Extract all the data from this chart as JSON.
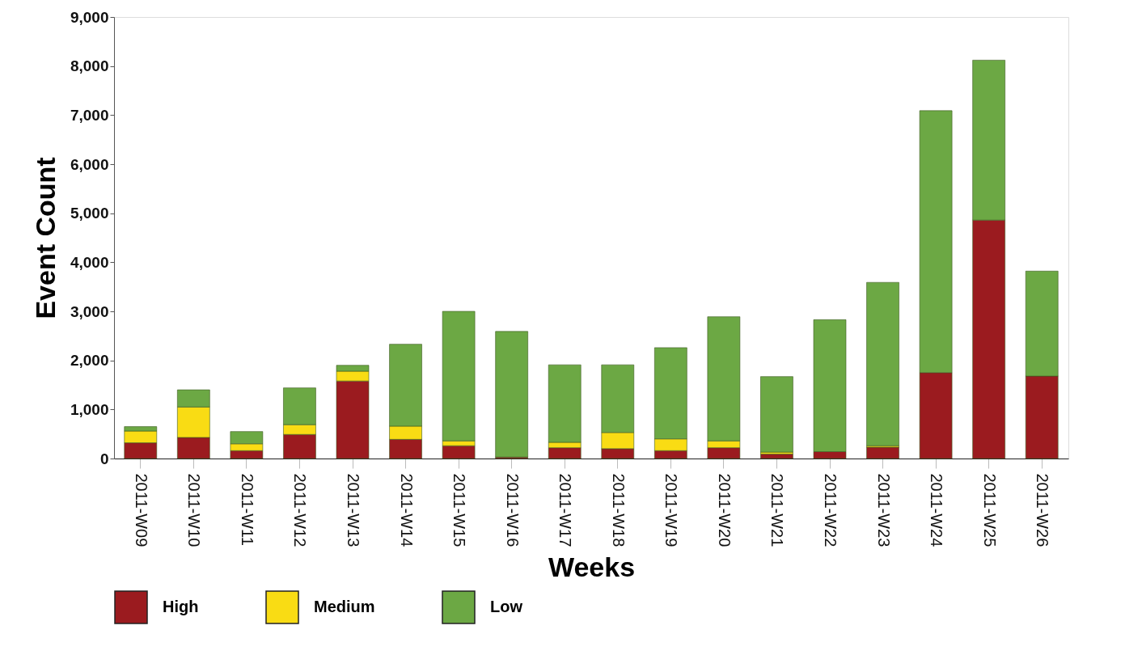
{
  "chart_data": {
    "type": "bar",
    "xlabel": "Weeks",
    "ylabel": "Event Count",
    "stacked": true,
    "categories": [
      "2011-W09",
      "2011-W10",
      "2011-W11",
      "2011-W12",
      "2011-W13",
      "2011-W14",
      "2011-W15",
      "2011-W16",
      "2011-W17",
      "2011-W18",
      "2011-W19",
      "2011-W20",
      "2011-W21",
      "2011-W22",
      "2011-W23",
      "2011-W24",
      "2011-W25",
      "2011-W26"
    ],
    "series": [
      {
        "name": "High",
        "color": "#9b1b1f",
        "values": [
          320,
          430,
          160,
          490,
          1580,
          390,
          260,
          30,
          220,
          200,
          160,
          220,
          90,
          140,
          230,
          1750,
          4860,
          1680
        ]
      },
      {
        "name": "Medium",
        "color": "#f9dc14",
        "values": [
          240,
          620,
          140,
          200,
          200,
          270,
          100,
          null,
          110,
          330,
          240,
          140,
          40,
          null,
          30,
          null,
          null,
          null
        ]
      },
      {
        "name": "Low",
        "color": "#6ca844",
        "values": [
          90,
          350,
          250,
          750,
          120,
          1670,
          2640,
          2560,
          1580,
          1380,
          1860,
          2530,
          1540,
          2690,
          3330,
          5340,
          3260,
          2140
        ]
      }
    ],
    "ylim": [
      0,
      9000
    ],
    "yticks": [
      {
        "value": 0,
        "label": "0"
      },
      {
        "value": 1000,
        "label": "1,000"
      },
      {
        "value": 2000,
        "label": "2,000"
      },
      {
        "value": 3000,
        "label": "3,000"
      },
      {
        "value": 4000,
        "label": "4,000"
      },
      {
        "value": 5000,
        "label": "5,000"
      },
      {
        "value": 6000,
        "label": "6,000"
      },
      {
        "value": 7000,
        "label": "7,000"
      },
      {
        "value": 8000,
        "label": "8,000"
      },
      {
        "value": 9000,
        "label": "9,000"
      }
    ],
    "grid": false,
    "legend": "bottom"
  }
}
